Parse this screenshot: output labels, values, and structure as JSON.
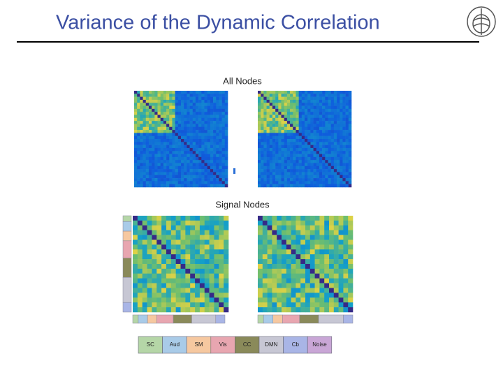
{
  "header": {
    "title": "Variance of the Dynamic Correlation"
  },
  "panels": [
    {
      "label": "All Nodes"
    },
    {
      "label": "Signal Nodes"
    }
  ],
  "legend": [
    "SC",
    "Aud",
    "SM",
    "Vis",
    "CC",
    "DMN",
    "Cb",
    "Noise"
  ]
}
